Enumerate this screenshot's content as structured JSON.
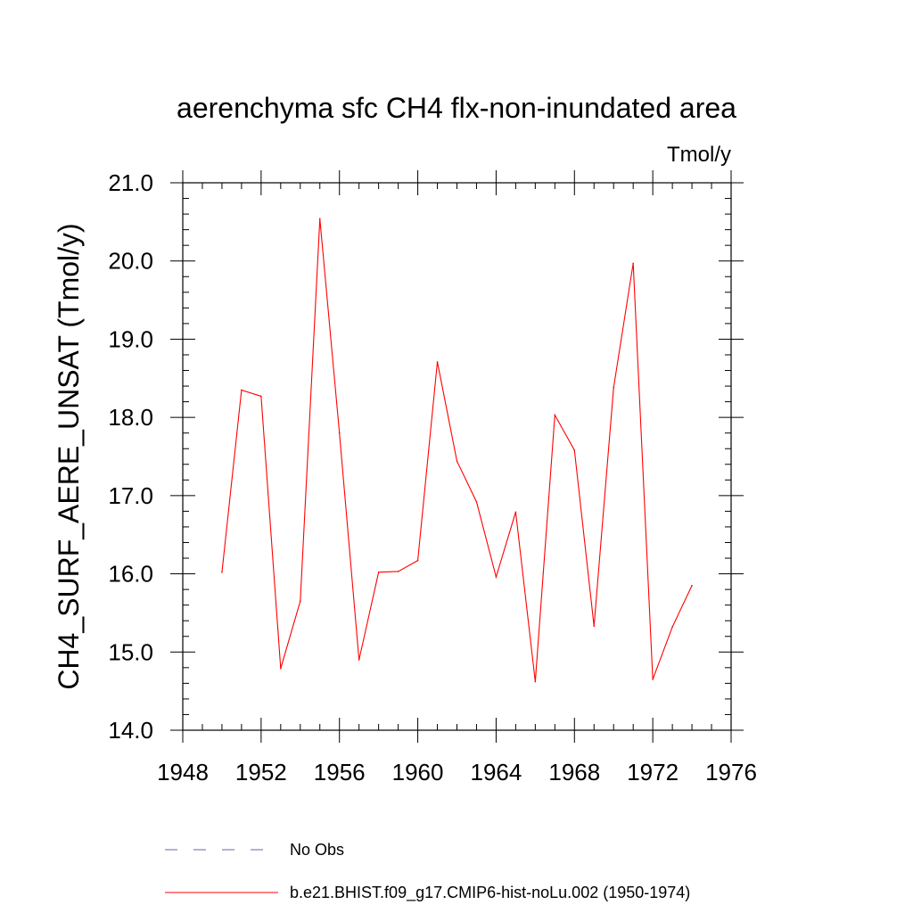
{
  "chart_data": {
    "type": "line",
    "title": "aerenchyma sfc CH4 flx-non-inundated area",
    "units_label": "Tmol/y",
    "ylabel": "CH4_SURF_AERE_UNSAT  (Tmol/y)",
    "xlabel": "",
    "xlim": [
      1948,
      1976
    ],
    "ylim": [
      14.0,
      21.0
    ],
    "x_ticks": [
      "1948",
      "1952",
      "1956",
      "1960",
      "1964",
      "1968",
      "1972",
      "1976"
    ],
    "y_ticks": [
      "14.0",
      "15.0",
      "16.0",
      "17.0",
      "18.0",
      "19.0",
      "20.0",
      "21.0"
    ],
    "grid": false,
    "legend_position": "bottom",
    "series": [
      {
        "name": "b.e21.BHIST.f09_g17.CMIP6-hist-noLu.002 (1950-1974)",
        "color": "#ff0000",
        "line_style": "solid",
        "x": [
          1950,
          1951,
          1952,
          1953,
          1954,
          1955,
          1956,
          1957,
          1958,
          1959,
          1960,
          1961,
          1962,
          1963,
          1964,
          1965,
          1966,
          1967,
          1968,
          1969,
          1970,
          1971,
          1972,
          1973,
          1974
        ],
        "values": [
          16.02,
          18.35,
          18.27,
          14.79,
          15.65,
          20.54,
          17.8,
          14.9,
          16.02,
          16.03,
          16.17,
          18.71,
          17.44,
          16.92,
          15.96,
          16.79,
          14.62,
          18.03,
          17.58,
          15.33,
          18.38,
          19.97,
          14.65,
          15.32,
          15.85
        ]
      }
    ],
    "legend": [
      {
        "label": "No Obs",
        "color": "#6666aa",
        "line_style": "dashed"
      },
      {
        "label": "b.e21.BHIST.f09_g17.CMIP6-hist-noLu.002 (1950-1974)",
        "color": "#ff0000",
        "line_style": "solid"
      }
    ]
  }
}
